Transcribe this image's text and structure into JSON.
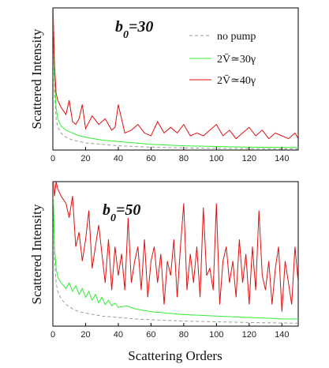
{
  "figure": {
    "xlabel": "Scattering Orders",
    "colors": {
      "no_pump": "#9a9a9a",
      "green": "#33ee33",
      "red": "#dd1111",
      "axis": "#000000"
    }
  },
  "chart_data": [
    {
      "type": "line",
      "title": "b0=30",
      "title_main": "b",
      "title_sub": "0",
      "title_rest": "=30",
      "ylabel": "Scattered Intensity",
      "xlim": [
        0,
        150
      ],
      "ylim": [
        0,
        1
      ],
      "xticks": [
        0,
        20,
        40,
        60,
        80,
        100,
        120,
        140
      ],
      "legend": {
        "position": "top-right"
      },
      "series": [
        {
          "name": "no pump",
          "color": "#9a9a9a",
          "dash": "4,3",
          "x": [
            0,
            1,
            2,
            3,
            5,
            8,
            12,
            16,
            20,
            25,
            30,
            35,
            40,
            50,
            60,
            70,
            80,
            100,
            120,
            150
          ],
          "y": [
            1.1,
            0.4,
            0.22,
            0.16,
            0.12,
            0.09,
            0.07,
            0.06,
            0.05,
            0.045,
            0.04,
            0.035,
            0.03,
            0.025,
            0.02,
            0.018,
            0.015,
            0.012,
            0.01,
            0.008
          ]
        },
        {
          "name": "2V̄≃30γ",
          "color": "#33ee33",
          "dash": "",
          "x": [
            0,
            1,
            2,
            3,
            5,
            8,
            12,
            16,
            20,
            25,
            30,
            35,
            40,
            50,
            60,
            70,
            80,
            100,
            120,
            150
          ],
          "y": [
            1.1,
            0.5,
            0.3,
            0.22,
            0.17,
            0.14,
            0.12,
            0.1,
            0.09,
            0.08,
            0.07,
            0.065,
            0.06,
            0.05,
            0.04,
            0.035,
            0.03,
            0.025,
            0.02,
            0.018
          ]
        },
        {
          "name": "2V̄≃40γ",
          "color": "#dd1111",
          "dash": "",
          "x": [
            0,
            1,
            2,
            3,
            5,
            8,
            10,
            12,
            14,
            16,
            18,
            20,
            24,
            28,
            32,
            36,
            38,
            40,
            44,
            48,
            52,
            56,
            60,
            64,
            68,
            72,
            76,
            80,
            84,
            88,
            92,
            96,
            100,
            104,
            108,
            112,
            116,
            120,
            124,
            128,
            132,
            136,
            140,
            144,
            148,
            150
          ],
          "y": [
            1.1,
            0.6,
            0.4,
            0.35,
            0.3,
            0.25,
            0.35,
            0.2,
            0.18,
            0.22,
            0.32,
            0.15,
            0.24,
            0.18,
            0.22,
            0.14,
            0.16,
            0.32,
            0.12,
            0.14,
            0.18,
            0.12,
            0.1,
            0.2,
            0.12,
            0.16,
            0.12,
            0.18,
            0.1,
            0.12,
            0.1,
            0.14,
            0.18,
            0.1,
            0.14,
            0.08,
            0.12,
            0.16,
            0.1,
            0.14,
            0.08,
            0.12,
            0.1,
            0.08,
            0.12,
            0.08
          ]
        }
      ]
    },
    {
      "type": "line",
      "title": "b0=50",
      "title_main": "b",
      "title_sub": "0",
      "title_rest": "=50",
      "ylabel": "Scattered Intensity",
      "xlim": [
        0,
        150
      ],
      "ylim": [
        0,
        1
      ],
      "xticks": [
        0,
        20,
        40,
        60,
        80,
        100,
        120,
        140
      ],
      "series": [
        {
          "name": "no pump",
          "color": "#9a9a9a",
          "dash": "4,3",
          "x": [
            0,
            1,
            2,
            3,
            5,
            8,
            12,
            16,
            20,
            25,
            30,
            40,
            50,
            60,
            70,
            80,
            100,
            120,
            150
          ],
          "y": [
            1.1,
            0.45,
            0.3,
            0.24,
            0.19,
            0.15,
            0.12,
            0.1,
            0.09,
            0.08,
            0.07,
            0.06,
            0.05,
            0.045,
            0.04,
            0.035,
            0.03,
            0.025,
            0.02
          ]
        },
        {
          "name": "2V̄≃30γ",
          "color": "#33ee33",
          "dash": "",
          "x": [
            0,
            1,
            2,
            3,
            5,
            8,
            10,
            12,
            14,
            16,
            18,
            20,
            22,
            24,
            26,
            28,
            30,
            32,
            34,
            36,
            38,
            40,
            45,
            50,
            55,
            60,
            70,
            80,
            90,
            100,
            110,
            120,
            130,
            140,
            150
          ],
          "y": [
            1.1,
            0.55,
            0.4,
            0.34,
            0.3,
            0.26,
            0.3,
            0.24,
            0.28,
            0.22,
            0.26,
            0.2,
            0.24,
            0.18,
            0.22,
            0.16,
            0.2,
            0.15,
            0.18,
            0.14,
            0.16,
            0.13,
            0.14,
            0.12,
            0.11,
            0.1,
            0.09,
            0.08,
            0.075,
            0.07,
            0.065,
            0.06,
            0.055,
            0.05,
            0.05
          ]
        },
        {
          "name": "2V̄≃40γ",
          "color": "#dd1111",
          "dash": "",
          "x": [
            0,
            1,
            2,
            3,
            5,
            8,
            10,
            12,
            14,
            16,
            18,
            20,
            22,
            24,
            26,
            28,
            30,
            32,
            34,
            36,
            38,
            40,
            42,
            44,
            46,
            48,
            50,
            52,
            54,
            56,
            58,
            60,
            62,
            64,
            66,
            68,
            70,
            72,
            74,
            76,
            78,
            80,
            82,
            84,
            86,
            88,
            90,
            92,
            94,
            96,
            98,
            100,
            102,
            104,
            106,
            108,
            110,
            112,
            114,
            116,
            118,
            120,
            122,
            124,
            126,
            128,
            130,
            132,
            134,
            136,
            138,
            140,
            142,
            144,
            146,
            148,
            150
          ],
          "y": [
            1.1,
            0.9,
            1.0,
            0.95,
            0.9,
            0.85,
            0.75,
            0.9,
            0.55,
            0.65,
            0.45,
            0.6,
            0.8,
            0.4,
            0.55,
            0.7,
            0.5,
            0.3,
            0.6,
            0.25,
            0.55,
            0.35,
            0.5,
            0.25,
            0.75,
            0.3,
            0.45,
            0.55,
            0.25,
            0.6,
            0.2,
            0.45,
            0.55,
            0.3,
            0.5,
            0.15,
            0.45,
            0.35,
            0.6,
            0.2,
            0.55,
            0.85,
            0.25,
            0.5,
            0.3,
            0.55,
            0.2,
            0.82,
            0.35,
            0.4,
            0.25,
            0.85,
            0.15,
            0.45,
            0.55,
            0.3,
            0.45,
            0.2,
            0.6,
            0.3,
            0.5,
            0.15,
            0.55,
            0.25,
            0.8,
            0.35,
            0.25,
            0.45,
            0.15,
            0.4,
            0.55,
            0.1,
            0.45,
            0.3,
            0.15,
            0.55,
            0.3
          ]
        }
      ]
    }
  ]
}
